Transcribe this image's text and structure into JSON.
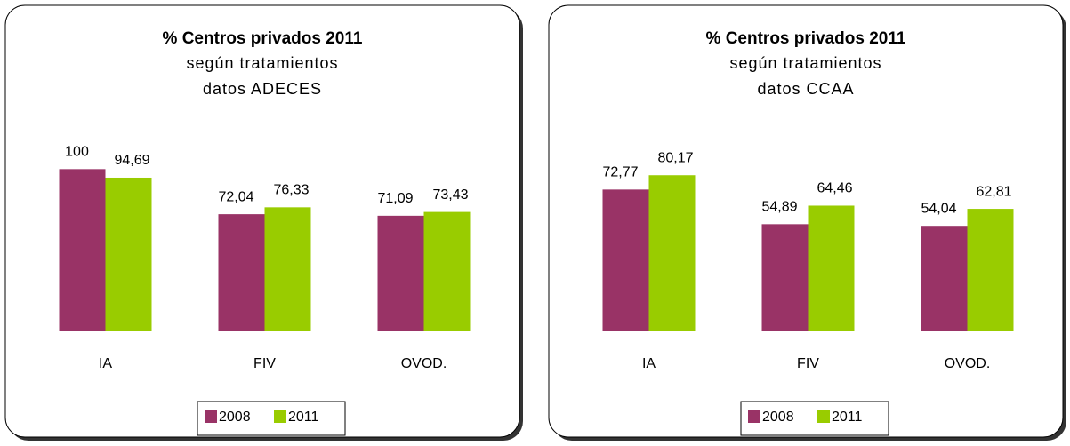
{
  "chart_data": [
    {
      "type": "bar",
      "title": "% Centros privados 2011",
      "subtitle": [
        "según tratamientos",
        "datos ADECES"
      ],
      "categories": [
        "IA",
        "FIV",
        "OVOD."
      ],
      "ylim": [
        0,
        120
      ],
      "legend": "bottom",
      "series": [
        {
          "name": "2008",
          "color": "#993366",
          "values": [
            100,
            72.04,
            71.09
          ],
          "value_labels": [
            "100",
            "72,04",
            "71,09"
          ]
        },
        {
          "name": "2011",
          "color": "#99cc00",
          "values": [
            94.69,
            76.33,
            73.43
          ],
          "value_labels": [
            "94,69",
            "76,33",
            "73,43"
          ]
        }
      ]
    },
    {
      "type": "bar",
      "title": "% Centros privados 2011",
      "subtitle": [
        "según tratamientos",
        "datos CCAA"
      ],
      "categories": [
        "IA",
        "FIV",
        "OVOD."
      ],
      "ylim": [
        0,
        100
      ],
      "legend": "bottom",
      "series": [
        {
          "name": "2008",
          "color": "#993366",
          "values": [
            72.77,
            54.89,
            54.04
          ],
          "value_labels": [
            "72,77",
            "54,89",
            "54,04"
          ]
        },
        {
          "name": "2011",
          "color": "#99cc00",
          "values": [
            80.17,
            64.46,
            62.81
          ],
          "value_labels": [
            "80,17",
            "64,46",
            "62,81"
          ]
        }
      ]
    }
  ]
}
